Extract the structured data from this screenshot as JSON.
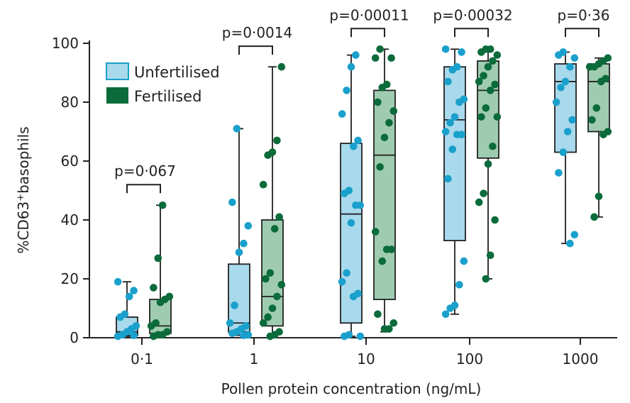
{
  "chart_data": {
    "type": "box",
    "title": "",
    "xlabel": "Pollen protein concentration (ng/mL)",
    "ylabel_prefix": "%CD63",
    "ylabel_sup": "+",
    "ylabel_suffix": "basophils",
    "ylim": [
      0,
      100
    ],
    "yticks": [
      "0",
      "20",
      "40",
      "60",
      "80",
      "100"
    ],
    "categories": [
      "0·1",
      "1",
      "10",
      "100",
      "1000"
    ],
    "legend": {
      "position": "top-left"
    },
    "series": [
      {
        "name": "Unfertilised",
        "color": "#1aa0cc",
        "box_fill": "#a9d9ec",
        "boxes": [
          {
            "min": 0.5,
            "q1": 0.8,
            "median": 2,
            "q3": 7,
            "max": 19
          },
          {
            "min": 0.8,
            "q1": 2,
            "median": 5,
            "q3": 25,
            "max": 71
          },
          {
            "min": 0.5,
            "q1": 5,
            "median": 42,
            "q3": 66,
            "max": 96
          },
          {
            "min": 8,
            "q1": 33,
            "median": 74,
            "q3": 92,
            "max": 98
          },
          {
            "min": 32,
            "q1": 63,
            "median": 87,
            "q3": 93,
            "max": 97
          }
        ],
        "points": [
          [
            19,
            16,
            14,
            8,
            7,
            4,
            3,
            2,
            1,
            0.5,
            0.8
          ],
          [
            71,
            46,
            38,
            32,
            29,
            11,
            5,
            4,
            3,
            2,
            1.5,
            1,
            0.8
          ],
          [
            96,
            92,
            84,
            76,
            67,
            65,
            50,
            49,
            45,
            45,
            39,
            22,
            19,
            15,
            14,
            1,
            0.5,
            0.5
          ],
          [
            98,
            97,
            92,
            91,
            87,
            81,
            80,
            75,
            73,
            70,
            69,
            69,
            64,
            54,
            26,
            18,
            11,
            10,
            8
          ],
          [
            97,
            96,
            95,
            92,
            87,
            85,
            80,
            74,
            70,
            63,
            56,
            35,
            32
          ]
        ]
      },
      {
        "name": "Fertilised",
        "color": "#0b6b3a",
        "box_fill": "#9fccb1",
        "boxes": [
          {
            "min": 1,
            "q1": 1.5,
            "median": 4,
            "q3": 13,
            "max": 45
          },
          {
            "min": 0.5,
            "q1": 4,
            "median": 14,
            "q3": 40,
            "max": 92
          },
          {
            "min": 2,
            "q1": 13,
            "median": 62,
            "q3": 84,
            "max": 98
          },
          {
            "min": 20,
            "q1": 61,
            "median": 84,
            "q3": 94,
            "max": 98
          },
          {
            "min": 41,
            "q1": 70,
            "median": 87,
            "q3": 93,
            "max": 95
          }
        ],
        "points": [
          [
            45,
            27,
            17,
            14,
            13,
            12,
            5,
            4,
            2,
            1,
            1,
            0.5
          ],
          [
            92,
            67,
            63,
            62,
            52,
            41,
            37,
            22,
            20,
            18,
            14,
            10,
            7,
            5,
            2,
            1,
            0.5
          ],
          [
            98,
            95,
            95,
            86,
            85,
            80,
            77,
            73,
            68,
            58,
            36,
            30,
            30,
            26,
            8,
            5,
            3,
            3
          ],
          [
            98,
            98,
            97,
            96,
            94,
            92,
            89,
            87,
            86,
            84,
            78,
            75,
            75,
            65,
            59,
            49,
            46,
            40,
            28,
            20
          ],
          [
            95,
            94,
            93,
            92,
            92,
            88,
            87,
            78,
            74,
            70,
            69,
            48,
            41
          ]
        ]
      }
    ],
    "comparisons": [
      {
        "label": "p=0·067",
        "level": 52
      },
      {
        "label": "p=0·0014",
        "level": 99
      },
      {
        "label": "p=0·00011",
        "level": 105
      },
      {
        "label": "p=0·00032",
        "level": 105
      },
      {
        "label": "p=0·36",
        "level": 105
      }
    ]
  }
}
